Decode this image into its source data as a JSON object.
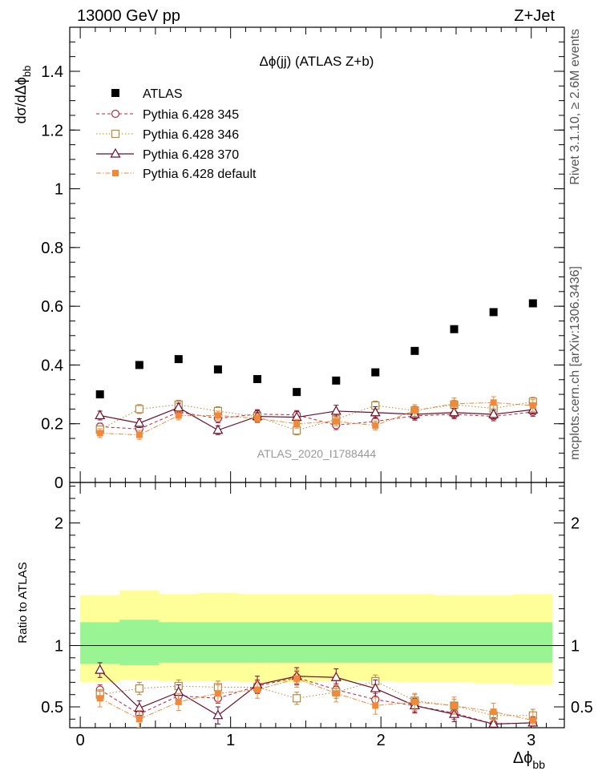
{
  "header": {
    "left": "13000 GeV pp",
    "right": "Z+Jet"
  },
  "side_labels": {
    "rivet": "Rivet 3.1.10, ≥ 2.6M events",
    "mcplots": "mcplots.cern.ch [arXiv:1306.3436]"
  },
  "chart_data": [
    {
      "type": "scatter",
      "panel": "main",
      "title": "Δϕ(jj) (ATLAS Z+b)",
      "watermark": "ATLAS_2020_I1788444",
      "xlabel": "Δϕ",
      "xlabel_sub": "bb",
      "ylabel": "dσ/dΔϕ",
      "ylabel_sub": "bb",
      "xlim": [
        -0.07,
        3.22
      ],
      "ylim": [
        0,
        1.55
      ],
      "yticks": [
        0,
        0.2,
        0.4,
        0.6,
        0.8,
        1,
        1.2,
        1.4
      ],
      "ytick_labels": [
        "0",
        "0.2",
        "0.4",
        "0.6",
        "0.8",
        "1",
        "1.2",
        "1.4"
      ],
      "x_bin_edges": [
        0,
        0.2618,
        0.5236,
        0.7854,
        1.0472,
        1.309,
        1.5708,
        1.8326,
        2.0944,
        2.3562,
        2.618,
        2.8798,
        3.1416
      ],
      "x": [
        0.131,
        0.393,
        0.654,
        0.916,
        1.178,
        1.44,
        1.702,
        1.963,
        2.225,
        2.487,
        2.749,
        3.011
      ],
      "series": [
        {
          "name": "ATLAS",
          "color": "#000000",
          "marker": "square-filled",
          "line": "none",
          "values": [
            0.3,
            0.4,
            0.42,
            0.385,
            0.352,
            0.308,
            0.347,
            0.375,
            0.448,
            0.522,
            0.58,
            0.61
          ],
          "errors": [
            0,
            0,
            0,
            0,
            0,
            0,
            0,
            0,
            0,
            0,
            0,
            0
          ]
        },
        {
          "name": "Pythia 6.428 345",
          "color": "#b5293c",
          "marker": "circle-open",
          "line": "dashed",
          "values": [
            0.19,
            0.182,
            0.24,
            0.218,
            0.233,
            0.23,
            0.195,
            0.208,
            0.227,
            0.232,
            0.225,
            0.24
          ],
          "errors": [
            0.012,
            0.015,
            0.015,
            0.015,
            0.015,
            0.015,
            0.015,
            0.015,
            0.015,
            0.015,
            0.015,
            0.015
          ]
        },
        {
          "name": "Pythia 6.428 346",
          "color": "#b58a3c",
          "marker": "square-open",
          "line": "dotted",
          "values": [
            0.18,
            0.25,
            0.265,
            0.243,
            0.224,
            0.177,
            0.215,
            0.262,
            0.245,
            0.265,
            0.252,
            0.275
          ],
          "errors": [
            0.012,
            0.015,
            0.015,
            0.015,
            0.015,
            0.015,
            0.015,
            0.015,
            0.015,
            0.015,
            0.015,
            0.015
          ]
        },
        {
          "name": "Pythia 6.428 370",
          "color": "#6b0f2a",
          "marker": "triangle-open",
          "line": "solid",
          "values": [
            0.228,
            0.202,
            0.255,
            0.178,
            0.225,
            0.222,
            0.243,
            0.238,
            0.232,
            0.238,
            0.232,
            0.248
          ],
          "errors": [
            0.015,
            0.015,
            0.015,
            0.015,
            0.02,
            0.02,
            0.02,
            0.02,
            0.015,
            0.015,
            0.015,
            0.015
          ]
        },
        {
          "name": "Pythia 6.428 default",
          "color": "#f08a3a",
          "marker": "square-filled",
          "line": "dashdot",
          "values": [
            0.168,
            0.162,
            0.228,
            0.228,
            0.218,
            0.2,
            0.208,
            0.194,
            0.245,
            0.268,
            0.272,
            0.262
          ],
          "errors": [
            0.015,
            0.015,
            0.015,
            0.015,
            0.015,
            0.015,
            0.015,
            0.015,
            0.02,
            0.02,
            0.02,
            0.02
          ]
        }
      ]
    },
    {
      "type": "scatter",
      "panel": "ratio",
      "ylabel": "Ratio to ATLAS",
      "xlim": [
        -0.07,
        3.22
      ],
      "ylim": [
        0.33,
        2.33
      ],
      "yticks": [
        0.5,
        1,
        2
      ],
      "ytick_labels": [
        "0.5",
        "1",
        "2"
      ],
      "xticks": [
        0,
        1,
        2,
        3
      ],
      "xtick_labels": [
        "0",
        "1",
        "2",
        "3"
      ],
      "reference_line": 1,
      "band_inner": {
        "color": "#99f593",
        "lower": [
          0.85,
          0.84,
          0.86,
          0.86,
          0.86,
          0.86,
          0.86,
          0.86,
          0.86,
          0.86,
          0.86,
          0.86
        ],
        "upper": [
          1.19,
          1.21,
          1.19,
          1.19,
          1.19,
          1.19,
          1.19,
          1.19,
          1.19,
          1.19,
          1.19,
          1.19
        ]
      },
      "band_outer": {
        "color": "#ffff99",
        "lower": [
          0.7,
          0.72,
          0.71,
          0.71,
          0.7,
          0.7,
          0.71,
          0.71,
          0.7,
          0.7,
          0.69,
          0.68
        ],
        "upper": [
          1.41,
          1.45,
          1.42,
          1.43,
          1.42,
          1.42,
          1.42,
          1.42,
          1.42,
          1.41,
          1.41,
          1.42
        ]
      },
      "series": [
        {
          "name": "Pythia 6.428 345",
          "color": "#b5293c",
          "marker": "circle-open",
          "line": "dashed",
          "values": [
            0.64,
            0.44,
            0.59,
            0.57,
            0.67,
            0.74,
            0.64,
            0.56,
            0.51,
            0.45,
            0.36,
            0.37
          ],
          "errors": [
            0.04,
            0.04,
            0.04,
            0.04,
            0.05,
            0.05,
            0.05,
            0.05,
            0.05,
            0.05,
            0.05,
            0.05
          ]
        },
        {
          "name": "Pythia 6.428 346",
          "color": "#b58a3c",
          "marker": "square-open",
          "line": "dotted",
          "values": [
            0.6,
            0.65,
            0.67,
            0.66,
            0.66,
            0.57,
            0.62,
            0.71,
            0.55,
            0.51,
            0.43,
            0.43
          ],
          "errors": [
            0.04,
            0.05,
            0.05,
            0.05,
            0.05,
            0.05,
            0.05,
            0.05,
            0.05,
            0.05,
            0.05,
            0.05
          ]
        },
        {
          "name": "Pythia 6.428 370",
          "color": "#6b0f2a",
          "marker": "triangle-open",
          "line": "solid",
          "values": [
            0.8,
            0.49,
            0.62,
            0.43,
            0.68,
            0.75,
            0.74,
            0.65,
            0.51,
            0.44,
            0.36,
            0.37
          ],
          "errors": [
            0.06,
            0.06,
            0.06,
            0.07,
            0.07,
            0.07,
            0.07,
            0.07,
            0.06,
            0.06,
            0.05,
            0.05
          ]
        },
        {
          "name": "Pythia 6.428 default",
          "color": "#f08a3a",
          "marker": "square-filled",
          "line": "dashdot",
          "values": [
            0.57,
            0.4,
            0.54,
            0.61,
            0.64,
            0.73,
            0.61,
            0.51,
            0.54,
            0.51,
            0.46,
            0.39
          ],
          "errors": [
            0.07,
            0.07,
            0.07,
            0.07,
            0.07,
            0.07,
            0.07,
            0.07,
            0.07,
            0.07,
            0.07,
            0.07
          ]
        }
      ]
    }
  ]
}
